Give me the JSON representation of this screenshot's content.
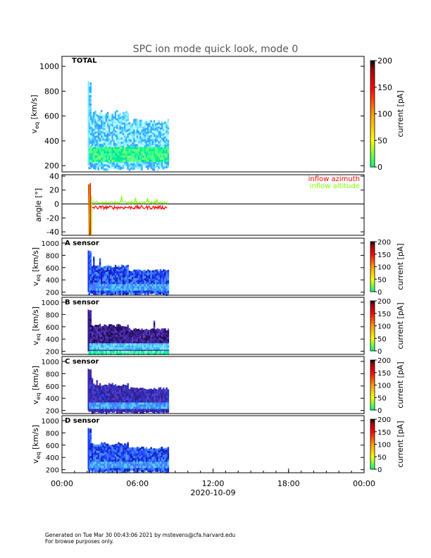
{
  "chart_data": {
    "type": "heatmap",
    "title": "SPC ion mode quick look, mode 0",
    "x_axis": {
      "date_label": "2020-10-09",
      "tick_labels": [
        "00:00",
        "06:00",
        "12:00",
        "18:00",
        "00:00"
      ],
      "range_hours": [
        0,
        24
      ],
      "data_span_hours": [
        2.1,
        8.4
      ]
    },
    "colorbar": {
      "label": "current [pA]",
      "range": [
        0,
        200
      ],
      "tick_labels_large": [
        "0",
        "50",
        "100",
        "150",
        "200"
      ],
      "tick_labels_small": [
        "0",
        "50",
        "100",
        "150",
        "200"
      ],
      "colors": [
        "#00ff7f",
        "#ffff00",
        "#ff9a00",
        "#ff0000",
        "#b80000",
        "#000000"
      ]
    },
    "panels": [
      {
        "sensor_label": "TOTAL",
        "ylabel": "v_eq [km/s]",
        "ylabel_main": "v",
        "ylabel_sub": "eq",
        "ylabel_unit": "[km/s]",
        "ylim": [
          150,
          1080
        ],
        "tick_labels": [
          "200",
          "400",
          "600",
          "800",
          "1000"
        ],
        "band_top_kms": [
          880,
          660,
          620,
          580,
          560,
          520
        ],
        "dominant_color": "cyan",
        "peak_band_kms": [
          250,
          350
        ]
      },
      {
        "type": "line",
        "ylabel": "angle [°]",
        "ylim": [
          -45,
          42
        ],
        "tick_labels": [
          "40",
          "20",
          "0",
          "-20",
          "-40"
        ],
        "series": [
          {
            "name": "inflow azimuth",
            "color": "#ff0000",
            "values_mean": -5
          },
          {
            "name": "inflow altitude",
            "color": "#7fff00",
            "values_mean": 2
          }
        ]
      },
      {
        "sensor_label": "A sensor",
        "ylabel_main": "v",
        "ylabel_sub": "eq",
        "ylabel_unit": "[km/s]",
        "ylim": [
          150,
          1080
        ],
        "tick_labels": [
          "200",
          "400",
          "600",
          "800",
          "1000"
        ],
        "dominant_color": "blue"
      },
      {
        "sensor_label": "B sensor",
        "ylabel_main": "v",
        "ylabel_sub": "eq",
        "ylabel_unit": "[km/s]",
        "ylim": [
          150,
          1080
        ],
        "tick_labels": [
          "200",
          "400",
          "600",
          "800",
          "1000"
        ],
        "dominant_color": "purple"
      },
      {
        "sensor_label": "C sensor",
        "ylabel_main": "v",
        "ylabel_sub": "eq",
        "ylabel_unit": "[km/s]",
        "ylim": [
          150,
          1080
        ],
        "tick_labels": [
          "200",
          "400",
          "600",
          "800",
          "1000"
        ],
        "dominant_color": "purple-blue"
      },
      {
        "sensor_label": "D sensor",
        "ylabel_main": "v",
        "ylabel_sub": "eq",
        "ylabel_unit": "[km/s]",
        "ylim": [
          150,
          1080
        ],
        "tick_labels": [
          "200",
          "400",
          "600",
          "800",
          "1000"
        ],
        "dominant_color": "blue"
      }
    ]
  },
  "footer": {
    "line1": "Generated on Tue Mar 30 00:43:06 2021 by mstevens@cfa.harvard.edu",
    "line2": "For browse purposes only."
  }
}
